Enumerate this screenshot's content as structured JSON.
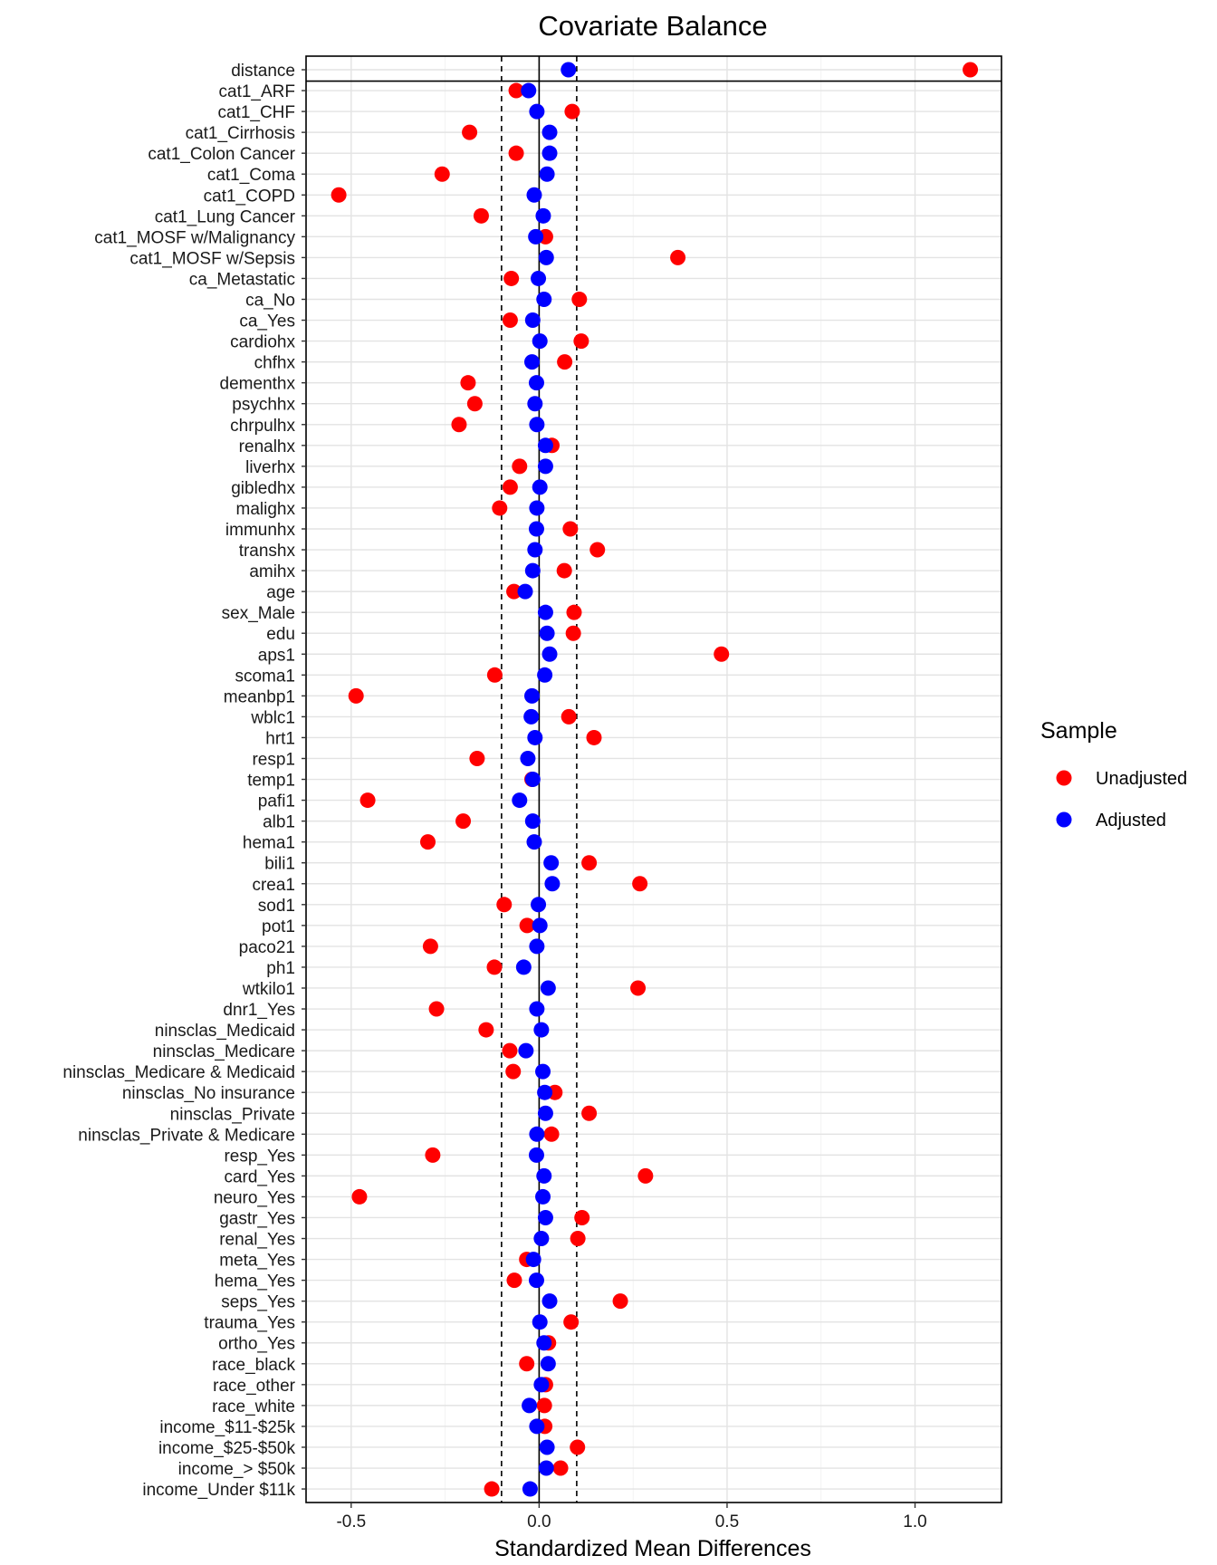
{
  "chart_data": {
    "type": "scatter",
    "title": "Covariate Balance",
    "xlabel": "Standardized Mean Differences",
    "ylabel": "",
    "xlim": [
      -0.62,
      1.23
    ],
    "x_ticks": [
      -0.5,
      0,
      0.5,
      1
    ],
    "x_tick_labels": [
      "-0.5",
      "0.0",
      "0.5",
      "1.0"
    ],
    "threshold_lines": [
      -0.1,
      0.1
    ],
    "zero_line": 0,
    "grid": true,
    "legend": {
      "title": "Sample",
      "position": "right"
    },
    "categories": [
      "distance",
      "cat1_ARF",
      "cat1_CHF",
      "cat1_Cirrhosis",
      "cat1_Colon Cancer",
      "cat1_Coma",
      "cat1_COPD",
      "cat1_Lung Cancer",
      "cat1_MOSF w/Malignancy",
      "cat1_MOSF w/Sepsis",
      "ca_Metastatic",
      "ca_No",
      "ca_Yes",
      "cardiohx",
      "chfhx",
      "dementhx",
      "psychhx",
      "chrpulhx",
      "renalhx",
      "liverhx",
      "gibledhx",
      "malighx",
      "immunhx",
      "transhx",
      "amihx",
      "age",
      "sex_Male",
      "edu",
      "aps1",
      "scoma1",
      "meanbp1",
      "wblc1",
      "hrt1",
      "resp1",
      "temp1",
      "pafi1",
      "alb1",
      "hema1",
      "bili1",
      "crea1",
      "sod1",
      "pot1",
      "paco21",
      "ph1",
      "wtkilo1",
      "dnr1_Yes",
      "ninsclas_Medicaid",
      "ninsclas_Medicare",
      "ninsclas_Medicare & Medicaid",
      "ninsclas_No insurance",
      "ninsclas_Private",
      "ninsclas_Private & Medicare",
      "resp_Yes",
      "card_Yes",
      "neuro_Yes",
      "gastr_Yes",
      "renal_Yes",
      "meta_Yes",
      "hema_Yes",
      "seps_Yes",
      "trauma_Yes",
      "ortho_Yes",
      "race_black",
      "race_other",
      "race_white",
      "income_$11-$25k",
      "income_$25-$50k",
      "income_> $50k",
      "income_Under $11k"
    ],
    "series": [
      {
        "name": "Unadjusted",
        "color": "#ff0000",
        "values": [
          1.147,
          -0.061,
          0.088,
          -0.185,
          -0.061,
          -0.258,
          -0.533,
          -0.154,
          0.017,
          0.369,
          -0.074,
          0.107,
          -0.077,
          0.112,
          0.068,
          -0.189,
          -0.171,
          -0.213,
          0.034,
          -0.052,
          -0.077,
          -0.105,
          0.083,
          0.155,
          0.067,
          -0.067,
          0.093,
          0.091,
          0.485,
          -0.118,
          -0.487,
          0.079,
          0.146,
          -0.165,
          -0.019,
          -0.456,
          -0.202,
          -0.296,
          0.133,
          0.268,
          -0.093,
          -0.032,
          -0.289,
          -0.119,
          0.263,
          -0.273,
          -0.141,
          -0.078,
          -0.069,
          0.042,
          0.133,
          0.033,
          -0.283,
          0.283,
          -0.478,
          0.114,
          0.103,
          -0.033,
          -0.066,
          0.216,
          0.085,
          0.025,
          -0.033,
          0.017,
          0.014,
          0.015,
          0.102,
          0.057,
          -0.126
        ]
      },
      {
        "name": "Adjusted",
        "color": "#0000ff",
        "values": [
          0.078,
          -0.028,
          -0.006,
          0.028,
          0.028,
          0.021,
          -0.013,
          0.011,
          -0.009,
          0.019,
          -0.002,
          0.013,
          -0.017,
          0.002,
          -0.019,
          -0.007,
          -0.011,
          -0.006,
          0.017,
          0.017,
          0.002,
          -0.006,
          -0.007,
          -0.011,
          -0.017,
          -0.037,
          0.017,
          0.021,
          0.028,
          0.015,
          -0.019,
          -0.021,
          -0.011,
          -0.03,
          -0.017,
          -0.052,
          -0.017,
          -0.013,
          0.032,
          0.035,
          -0.002,
          0.002,
          -0.006,
          -0.041,
          0.024,
          -0.006,
          0.006,
          -0.035,
          0.01,
          0.015,
          0.017,
          -0.006,
          -0.007,
          0.013,
          0.01,
          0.017,
          0.006,
          -0.015,
          -0.007,
          0.028,
          0.002,
          0.013,
          0.024,
          0.006,
          -0.026,
          -0.006,
          0.021,
          0.019,
          -0.024
        ]
      }
    ]
  }
}
